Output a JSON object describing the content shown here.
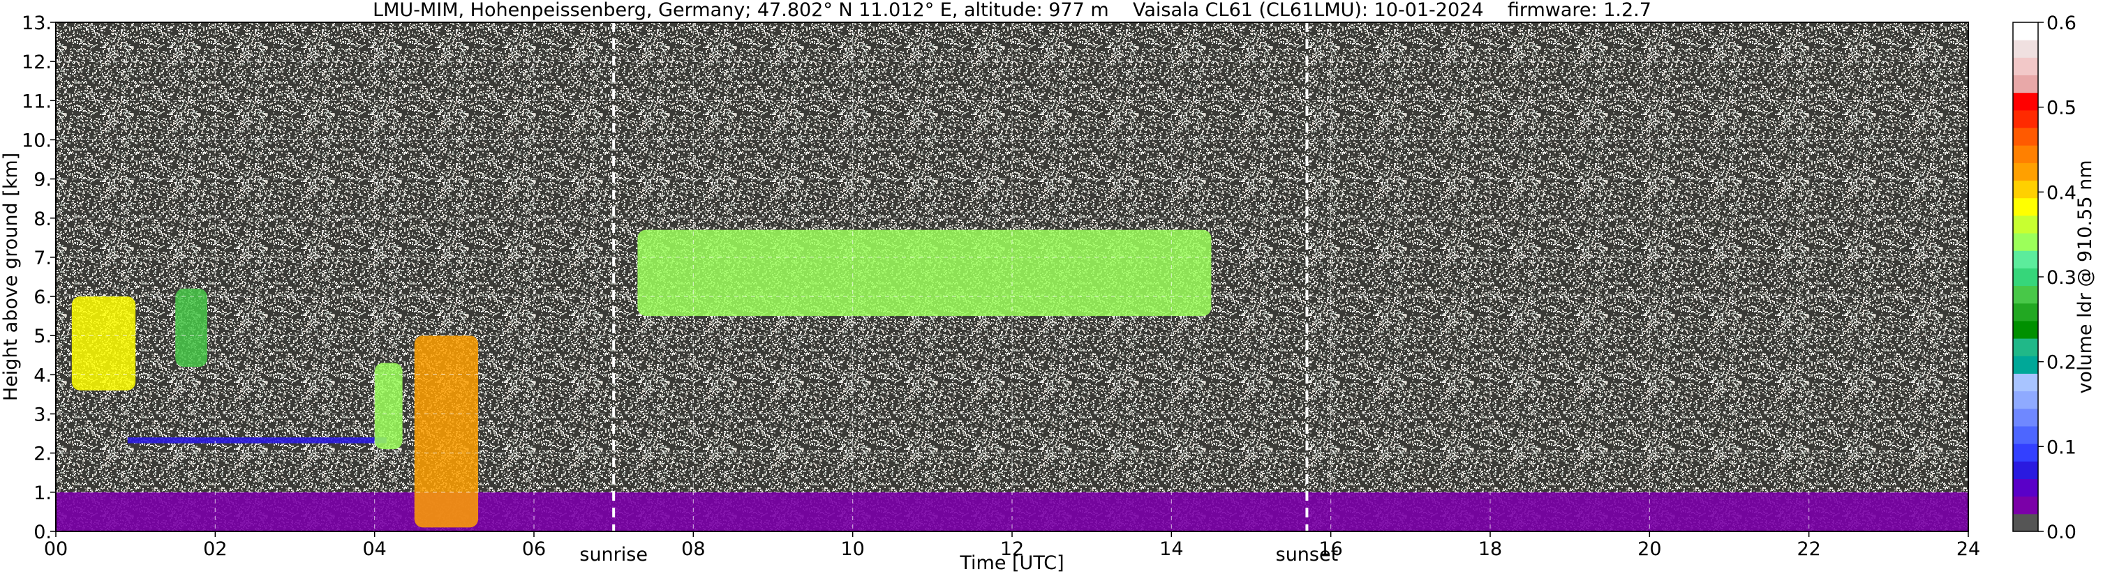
{
  "chart_data": {
    "type": "heatmap",
    "title": "LMU-MIM, Hohenpeissenberg, Germany; 47.802° N 11.012° E, altitude: 977 m    Vaisala CL61 (CL61LMU): 10-01-2024    firmware: 1.2.7",
    "xlabel": "Time [UTC]",
    "ylabel": "Height above ground [km]",
    "xlim": [
      0,
      24
    ],
    "ylim": [
      0,
      13
    ],
    "x_ticks": [
      "00",
      "02",
      "04",
      "06",
      "08",
      "10",
      "12",
      "14",
      "16",
      "18",
      "20",
      "22",
      "24"
    ],
    "y_ticks": [
      "0.",
      "1.",
      "2.",
      "3.",
      "4.",
      "5.",
      "6.",
      "7.",
      "8.",
      "9.",
      "10.",
      "11.",
      "12.",
      "13."
    ],
    "grid": true,
    "annotations": [
      {
        "label": "sunrise",
        "x": 7.0
      },
      {
        "label": "sunset",
        "x": 15.7
      }
    ],
    "colorbar": {
      "label": "volume ldr @ 910.55 nm",
      "range": [
        0.0,
        0.6
      ],
      "ticks": [
        "0.0",
        "0.1",
        "0.2",
        "0.3",
        "0.4",
        "0.5",
        "0.6"
      ],
      "colors": [
        "#555555",
        "#7b00a8",
        "#5a00c8",
        "#2a1ae0",
        "#3340ff",
        "#4d66ff",
        "#6f88ff",
        "#8faaff",
        "#a8c4ff",
        "#00a898",
        "#20b888",
        "#009000",
        "#22a822",
        "#48c848",
        "#36d67a",
        "#5cec9c",
        "#9cff5a",
        "#c8ff30",
        "#ffff00",
        "#ffd000",
        "#ffa000",
        "#ff8000",
        "#ff5a00",
        "#ff2a00",
        "#ff0000",
        "#e8a8a8",
        "#f2c8c8",
        "#f0e0e0",
        "#ffffff"
      ]
    },
    "features": [
      {
        "name": "aerosol layer",
        "x": [
          0,
          24
        ],
        "y": [
          0,
          1.0
        ],
        "ldr": 0.02
      },
      {
        "name": "residual layer",
        "x": [
          0.9,
          4.15
        ],
        "y": [
          2.25,
          2.4
        ],
        "ldr": 0.06
      },
      {
        "name": "cloud",
        "x": [
          0.2,
          1.0
        ],
        "y": [
          3.6,
          6.0
        ],
        "ldr": 0.38
      },
      {
        "name": "cloud",
        "x": [
          1.5,
          1.9
        ],
        "y": [
          4.2,
          6.2
        ],
        "ldr": 0.28
      },
      {
        "name": "cloud",
        "x": [
          4.0,
          4.35
        ],
        "y": [
          2.1,
          4.3
        ],
        "ldr": 0.35
      },
      {
        "name": "cloud",
        "x": [
          4.5,
          5.3
        ],
        "y": [
          0.1,
          5.0
        ],
        "ldr": 0.42
      },
      {
        "name": "cloud",
        "x": [
          7.3,
          14.5
        ],
        "y": [
          5.5,
          7.7
        ],
        "ldr": 0.35
      }
    ]
  }
}
